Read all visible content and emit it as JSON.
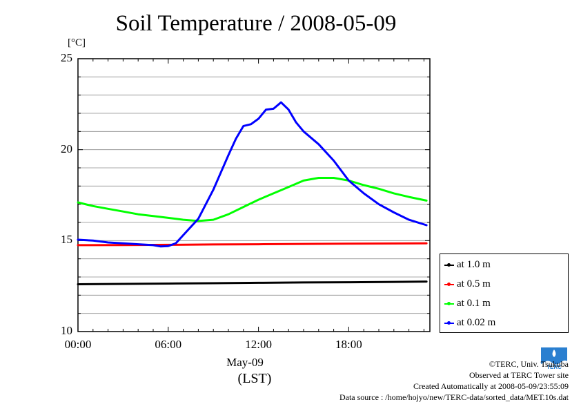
{
  "title": "Soil Temperature / 2008-05-09",
  "unit": "[°C]",
  "x_sub": "May-09",
  "x_unit": "(LST)",
  "credits": {
    "line1": "©TERC, Univ. Tsukuba",
    "line2": "Observed at TERC Tower site",
    "line3": "Created Automatically at 2008-05-09/23:55:09",
    "line4": "Data source : /home/hojyo/new/TERC-data/sorted_data/MET.10s.dat"
  },
  "logo_text": "TERC",
  "chart_data": {
    "type": "line",
    "title": "Soil Temperature / 2008-05-09",
    "ylabel": "[°C]",
    "xlabel": "(LST)",
    "ylim": [
      10,
      25
    ],
    "xlim": [
      0,
      23.1667
    ],
    "yticks": [
      "25",
      "20",
      "15",
      "10"
    ],
    "xticks": [
      "00:00",
      "06:00",
      "12:00",
      "18:00"
    ],
    "grid": true,
    "legend_position": "bottom-right",
    "series": [
      {
        "name": "at 1.0 m",
        "color": "#000000",
        "x": [
          0,
          3,
          6,
          9,
          12,
          15,
          18,
          21,
          23.17
        ],
        "y": [
          12.6,
          12.62,
          12.64,
          12.66,
          12.68,
          12.7,
          12.71,
          12.73,
          12.75
        ]
      },
      {
        "name": "at 0.5 m",
        "color": "#ff0000",
        "x": [
          0,
          3,
          6,
          9,
          12,
          15,
          18,
          21,
          23.17
        ],
        "y": [
          14.75,
          14.76,
          14.77,
          14.79,
          14.8,
          14.82,
          14.83,
          14.84,
          14.85
        ]
      },
      {
        "name": "at 0.1 m",
        "color": "#00ff00",
        "x": [
          0,
          1,
          2,
          3,
          4,
          5,
          6,
          7,
          8,
          9,
          10,
          11,
          12,
          13,
          14,
          15,
          16,
          17,
          18,
          19,
          20,
          21,
          22,
          23.17
        ],
        "y": [
          17.1,
          16.9,
          16.75,
          16.6,
          16.45,
          16.35,
          16.25,
          16.15,
          16.08,
          16.15,
          16.45,
          16.85,
          17.25,
          17.6,
          17.95,
          18.3,
          18.45,
          18.45,
          18.3,
          18.05,
          17.85,
          17.6,
          17.4,
          17.2
        ]
      },
      {
        "name": "at 0.02 m",
        "color": "#0000ff",
        "x": [
          0,
          1,
          2,
          3,
          4,
          5,
          5.5,
          6,
          6.5,
          7,
          8,
          9,
          10,
          10.5,
          11,
          11.5,
          12,
          12.5,
          13,
          13.5,
          14,
          14.5,
          15,
          16,
          17,
          18,
          19,
          20,
          21,
          22,
          23.17
        ],
        "y": [
          15.05,
          15.0,
          14.9,
          14.85,
          14.8,
          14.75,
          14.68,
          14.7,
          14.85,
          15.3,
          16.2,
          17.8,
          19.7,
          20.6,
          21.3,
          21.4,
          21.7,
          22.2,
          22.25,
          22.6,
          22.2,
          21.5,
          21.0,
          20.3,
          19.4,
          18.3,
          17.6,
          17.0,
          16.55,
          16.15,
          15.85
        ]
      }
    ]
  }
}
